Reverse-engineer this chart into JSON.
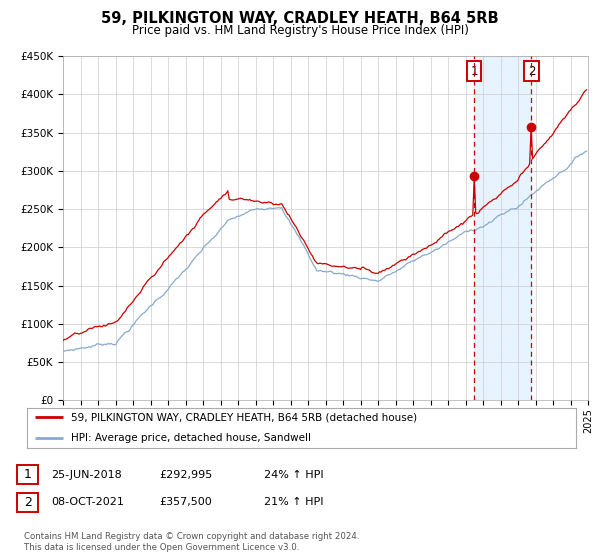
{
  "title": "59, PILKINGTON WAY, CRADLEY HEATH, B64 5RB",
  "subtitle": "Price paid vs. HM Land Registry's House Price Index (HPI)",
  "background_color": "#ffffff",
  "plot_bg_color": "#ffffff",
  "grid_color": "#cccccc",
  "red_line_color": "#cc0000",
  "blue_line_color": "#88aacc",
  "between_fill_color": "#ddeeff",
  "marker1_x": 2018.49,
  "marker1_y": 292995,
  "marker2_x": 2021.77,
  "marker2_y": 357500,
  "xmin": 1995,
  "xmax": 2025,
  "ymin": 0,
  "ymax": 450000,
  "yticks": [
    0,
    50000,
    100000,
    150000,
    200000,
    250000,
    300000,
    350000,
    400000,
    450000
  ],
  "ytick_labels": [
    "£0",
    "£50K",
    "£100K",
    "£150K",
    "£200K",
    "£250K",
    "£300K",
    "£350K",
    "£400K",
    "£450K"
  ],
  "legend_red_label": "59, PILKINGTON WAY, CRADLEY HEATH, B64 5RB (detached house)",
  "legend_blue_label": "HPI: Average price, detached house, Sandwell",
  "sale1_label": "1",
  "sale1_date": "25-JUN-2018",
  "sale1_price": "£292,995",
  "sale1_hpi": "24% ↑ HPI",
  "sale2_label": "2",
  "sale2_date": "08-OCT-2021",
  "sale2_price": "£357,500",
  "sale2_hpi": "21% ↑ HPI",
  "footnote1": "Contains HM Land Registry data © Crown copyright and database right 2024.",
  "footnote2": "This data is licensed under the Open Government Licence v3.0."
}
